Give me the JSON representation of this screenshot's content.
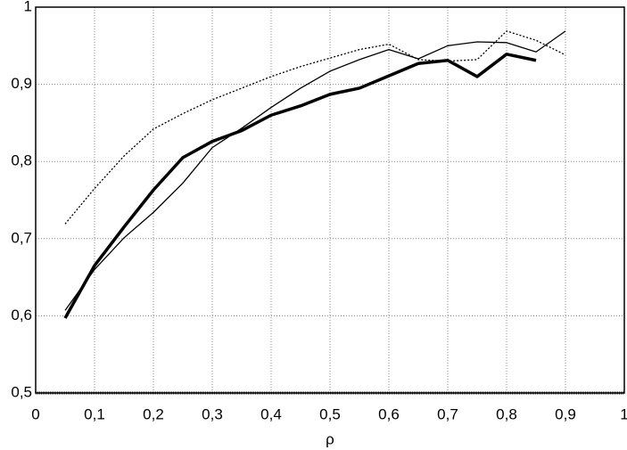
{
  "chart_data": {
    "type": "line",
    "x_label": "ρ",
    "x": [
      0.05,
      0.1,
      0.15,
      0.2,
      0.25,
      0.3,
      0.35,
      0.4,
      0.45,
      0.5,
      0.55,
      0.6,
      0.65,
      0.7,
      0.75,
      0.8,
      0.85,
      0.9
    ],
    "series": [
      {
        "color": "#000000",
        "line_width": 3.5,
        "dash": "none",
        "values": [
          0.597,
          0.665,
          0.715,
          0.763,
          0.805,
          0.826,
          0.84,
          0.86,
          0.872,
          0.887,
          0.895,
          0.911,
          0.927,
          0.931,
          0.91,
          0.939,
          0.931,
          null
        ]
      },
      {
        "color": "#000000",
        "line_width": 1.3,
        "dash": "none",
        "values": [
          0.607,
          0.66,
          0.701,
          0.734,
          0.772,
          0.818,
          0.843,
          0.87,
          0.895,
          0.917,
          0.932,
          0.945,
          0.933,
          0.95,
          0.955,
          0.954,
          0.942,
          0.969
        ]
      },
      {
        "color": "#000000",
        "line_width": 1.3,
        "dash": "2 2",
        "values": [
          0.719,
          0.765,
          0.807,
          0.842,
          0.862,
          0.88,
          0.895,
          0.91,
          0.923,
          0.934,
          0.945,
          0.952,
          0.932,
          0.93,
          0.932,
          0.969,
          0.957,
          0.938
        ]
      }
    ],
    "xlim": [
      0,
      1
    ],
    "xticks": [
      0,
      {
        "value": 0.1,
        "label": "0,1"
      },
      {
        "value": 0.2,
        "label": "0,2"
      },
      {
        "value": 0.3,
        "label": "0,3"
      },
      {
        "value": 0.4,
        "label": "0,4"
      },
      {
        "value": 0.5,
        "label": "0,5"
      },
      {
        "value": 0.6,
        "label": "0,6"
      },
      {
        "value": 0.7,
        "label": "0,7"
      },
      {
        "value": 0.8,
        "label": "0,8"
      },
      {
        "value": 0.9,
        "label": "0,9"
      },
      1
    ],
    "ylim": [
      0.5,
      1
    ],
    "yticks": [
      {
        "value": 0.5,
        "label": "0,5"
      },
      {
        "value": 0.6,
        "label": "0,6"
      },
      {
        "value": 0.7,
        "label": "0,7"
      },
      {
        "value": 0.8,
        "label": "0,8"
      },
      {
        "value": 0.9,
        "label": "0,9"
      },
      1
    ],
    "grid": true
  }
}
